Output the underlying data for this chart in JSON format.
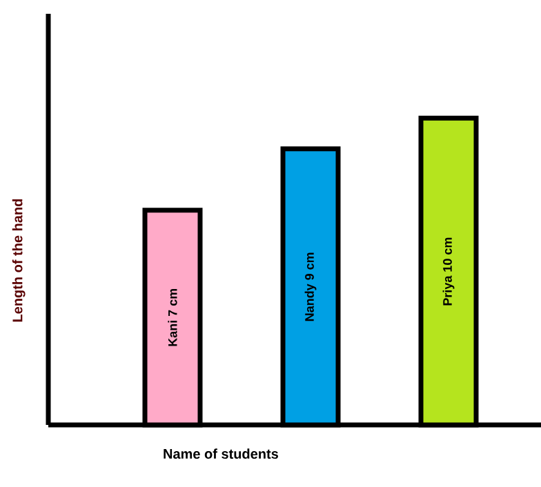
{
  "chart_data": {
    "type": "bar",
    "xlabel": "Name of students",
    "ylabel": "Length of the hand",
    "categories": [
      null,
      null,
      null
    ],
    "values": [
      7,
      9,
      10
    ],
    "colors": [
      "#ffaac8",
      "#00a0e4",
      "#b5e41e"
    ],
    "value_labels": [
      "Kani 7 cm",
      "Nandy 9 cm",
      "Priya 10 cm"
    ],
    "ylim": [
      0,
      13.4
    ]
  }
}
